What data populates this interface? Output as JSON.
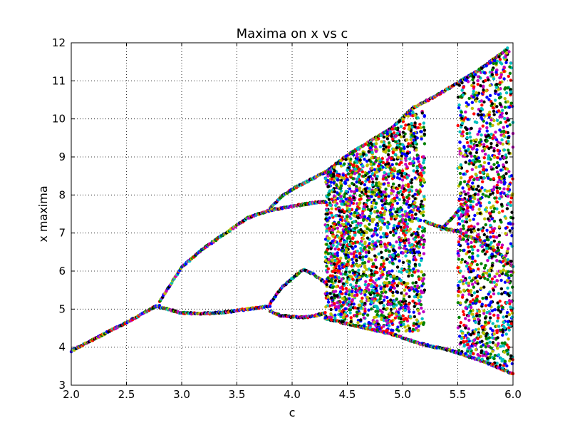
{
  "chart_data": {
    "type": "scatter",
    "title": "Maxima on x vs c",
    "xlabel": "c",
    "ylabel": "x maxima",
    "xlim": [
      2.0,
      6.0
    ],
    "ylim": [
      3,
      12
    ],
    "x_ticks": [
      "2.0",
      "2.5",
      "3.0",
      "3.5",
      "4.0",
      "4.5",
      "5.0",
      "5.5",
      "6.0"
    ],
    "y_ticks": [
      "3",
      "4",
      "5",
      "6",
      "7",
      "8",
      "9",
      "10",
      "11",
      "12"
    ],
    "grid": true,
    "grid_style": "dotted",
    "marker_colors": [
      "#0000ff",
      "#008000",
      "#ff0000",
      "#00bfbf",
      "#bf00bf",
      "#bfbf00",
      "#000000"
    ],
    "branches": [
      {
        "c": [
          2.0,
          2.2,
          2.4,
          2.6,
          2.75,
          2.8
        ],
        "x": [
          3.9,
          4.2,
          4.5,
          4.8,
          5.05,
          5.1
        ]
      },
      {
        "c": [
          2.8,
          3.0,
          3.2,
          3.4,
          3.6,
          3.8
        ],
        "x": [
          5.2,
          6.1,
          6.6,
          7.0,
          7.4,
          7.6
        ]
      },
      {
        "c": [
          2.8,
          3.0,
          3.2,
          3.4,
          3.6,
          3.8
        ],
        "x": [
          5.05,
          4.9,
          4.88,
          4.92,
          5.0,
          5.08
        ]
      },
      {
        "c": [
          3.8,
          3.9,
          4.0,
          4.1,
          4.2,
          4.3
        ],
        "x": [
          7.65,
          7.95,
          8.15,
          8.3,
          8.45,
          8.6
        ]
      },
      {
        "c": [
          3.8,
          3.9,
          4.0,
          4.1,
          4.2,
          4.3
        ],
        "x": [
          7.6,
          7.65,
          7.7,
          7.75,
          7.8,
          7.82
        ]
      },
      {
        "c": [
          3.8,
          3.9,
          4.0,
          4.1,
          4.2,
          4.3
        ],
        "x": [
          5.15,
          5.55,
          5.8,
          6.05,
          5.9,
          5.7
        ]
      },
      {
        "c": [
          3.8,
          3.9,
          4.0,
          4.1,
          4.2,
          4.3
        ],
        "x": [
          4.95,
          4.82,
          4.8,
          4.78,
          4.82,
          4.9
        ]
      },
      {
        "c": [
          4.3,
          4.5,
          4.7,
          4.9,
          5.1,
          5.3,
          5.5,
          5.7,
          5.95
        ],
        "x": [
          8.6,
          9.05,
          9.4,
          9.75,
          10.3,
          10.6,
          10.95,
          11.3,
          11.85
        ]
      },
      {
        "c": [
          4.3,
          4.6,
          4.9,
          5.15,
          5.3,
          5.45,
          5.6,
          5.8,
          6.0
        ],
        "x": [
          4.75,
          4.55,
          4.35,
          4.1,
          4.0,
          3.9,
          3.75,
          3.55,
          3.3
        ]
      },
      {
        "c": [
          5.2,
          5.3,
          5.4,
          5.5,
          5.6,
          5.7,
          5.8,
          5.9,
          6.0
        ],
        "x": [
          7.3,
          7.2,
          7.1,
          7.05,
          6.9,
          6.8,
          6.6,
          6.4,
          6.1
        ]
      },
      {
        "c": [
          5.35,
          5.45,
          5.55,
          5.65
        ],
        "x": [
          7.1,
          7.4,
          7.75,
          8.0
        ]
      }
    ],
    "chaotic_regions": [
      {
        "c_min": 4.3,
        "c_max": 5.2,
        "x_min": 4.4,
        "x_max": 10.2
      },
      {
        "c_min": 5.5,
        "c_max": 6.0,
        "x_min": 3.3,
        "x_max": 11.8
      }
    ],
    "periodic_window": {
      "c_min": 5.2,
      "c_max": 5.5
    }
  }
}
